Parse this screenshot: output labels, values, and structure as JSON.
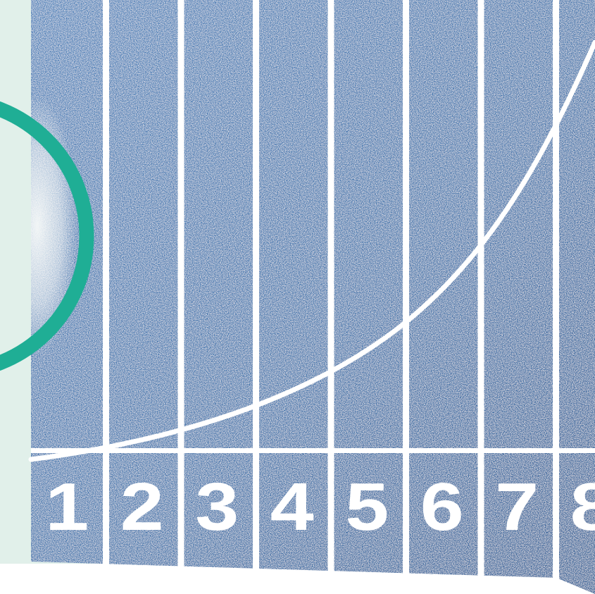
{
  "image": {
    "subject": "running-track-lanes",
    "colors": {
      "mint_background": "#e1f0ea",
      "track_blue": "#3f73ab",
      "track_blue_dark": "#2d5c94",
      "lane_line": "#ffffff",
      "ring_teal": "#1fae95",
      "fade_white": "#f6f9f8"
    },
    "lanes": [
      {
        "number": "1"
      },
      {
        "number": "2"
      },
      {
        "number": "3"
      },
      {
        "number": "4"
      },
      {
        "number": "5"
      },
      {
        "number": "6"
      },
      {
        "number": "7"
      },
      {
        "number": "8"
      }
    ]
  }
}
